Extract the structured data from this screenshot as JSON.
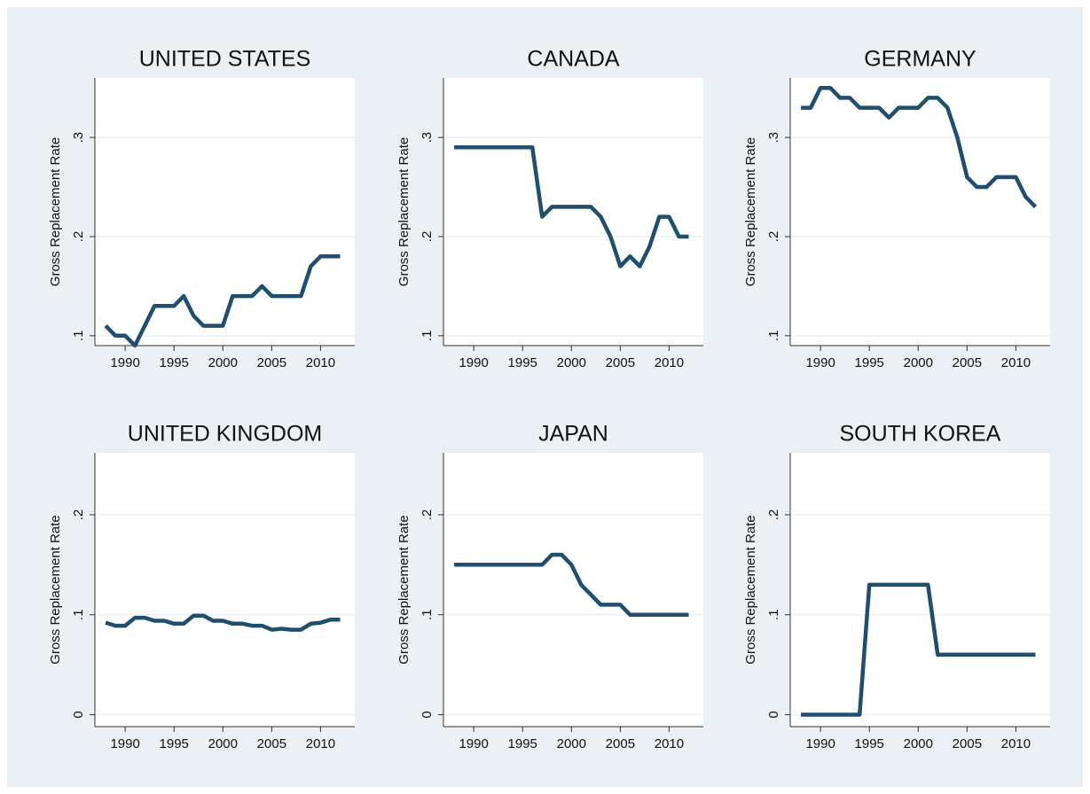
{
  "chart_data": [
    {
      "type": "line",
      "title": "UNITED STATES",
      "ylabel": "Gross Replacement Rate",
      "color": "#1f4e6e",
      "x": [
        1988,
        1989,
        1990,
        1991,
        1992,
        1993,
        1994,
        1995,
        1996,
        1997,
        1998,
        1999,
        2000,
        2001,
        2002,
        2003,
        2004,
        2005,
        2006,
        2007,
        2008,
        2009,
        2010,
        2011,
        2012
      ],
      "values": [
        0.11,
        0.1,
        0.1,
        0.09,
        0.11,
        0.13,
        0.13,
        0.13,
        0.14,
        0.12,
        0.11,
        0.11,
        0.11,
        0.14,
        0.14,
        0.14,
        0.15,
        0.14,
        0.14,
        0.14,
        0.14,
        0.17,
        0.18,
        0.18,
        0.18
      ],
      "xlim": [
        1986.9,
        2013.5
      ],
      "xticks": [
        1990,
        1995,
        2000,
        2005,
        2010
      ],
      "ylim": [
        0.09,
        0.36
      ],
      "yticks": [
        {
          "value": 0.1,
          "label": ".1"
        },
        {
          "value": 0.2,
          "label": ".2"
        },
        {
          "value": 0.3,
          "label": ".3"
        }
      ],
      "grid": true
    },
    {
      "type": "line",
      "title": "CANADA",
      "ylabel": "Gross Replacement Rate",
      "color": "#1f4e6e",
      "x": [
        1988,
        1989,
        1990,
        1991,
        1992,
        1993,
        1994,
        1995,
        1996,
        1997,
        1998,
        1999,
        2000,
        2001,
        2002,
        2003,
        2004,
        2005,
        2006,
        2007,
        2008,
        2009,
        2010,
        2011,
        2012
      ],
      "values": [
        0.29,
        0.29,
        0.29,
        0.29,
        0.29,
        0.29,
        0.29,
        0.29,
        0.29,
        0.22,
        0.23,
        0.23,
        0.23,
        0.23,
        0.23,
        0.22,
        0.2,
        0.17,
        0.18,
        0.17,
        0.19,
        0.22,
        0.22,
        0.2,
        0.2
      ],
      "xlim": [
        1986.9,
        2013.5
      ],
      "xticks": [
        1990,
        1995,
        2000,
        2005,
        2010
      ],
      "ylim": [
        0.09,
        0.36
      ],
      "yticks": [
        {
          "value": 0.1,
          "label": ".1"
        },
        {
          "value": 0.2,
          "label": ".2"
        },
        {
          "value": 0.3,
          "label": ".3"
        }
      ],
      "grid": true
    },
    {
      "type": "line",
      "title": "GERMANY",
      "ylabel": "Gross Replacement Rate",
      "color": "#1f4e6e",
      "x": [
        1988,
        1989,
        1990,
        1991,
        1992,
        1993,
        1994,
        1995,
        1996,
        1997,
        1998,
        1999,
        2000,
        2001,
        2002,
        2003,
        2004,
        2005,
        2006,
        2007,
        2008,
        2009,
        2010,
        2011,
        2012
      ],
      "values": [
        0.33,
        0.33,
        0.35,
        0.35,
        0.34,
        0.34,
        0.33,
        0.33,
        0.33,
        0.32,
        0.33,
        0.33,
        0.33,
        0.34,
        0.34,
        0.33,
        0.3,
        0.26,
        0.25,
        0.25,
        0.26,
        0.26,
        0.26,
        0.24,
        0.23
      ],
      "xlim": [
        1986.9,
        2013.5
      ],
      "xticks": [
        1990,
        1995,
        2000,
        2005,
        2010
      ],
      "ylim": [
        0.09,
        0.36
      ],
      "yticks": [
        {
          "value": 0.1,
          "label": ".1"
        },
        {
          "value": 0.2,
          "label": ".2"
        },
        {
          "value": 0.3,
          "label": ".3"
        }
      ],
      "grid": true
    },
    {
      "type": "line",
      "title": "UNITED KINGDOM",
      "ylabel": "Gross Replacement Rate",
      "color": "#1f4e6e",
      "x": [
        1988,
        1989,
        1990,
        1991,
        1992,
        1993,
        1994,
        1995,
        1996,
        1997,
        1998,
        1999,
        2000,
        2001,
        2002,
        2003,
        2004,
        2005,
        2006,
        2007,
        2008,
        2009,
        2010,
        2011,
        2012
      ],
      "values": [
        0.092,
        0.089,
        0.089,
        0.097,
        0.097,
        0.094,
        0.094,
        0.091,
        0.091,
        0.099,
        0.099,
        0.094,
        0.094,
        0.091,
        0.091,
        0.089,
        0.089,
        0.085,
        0.086,
        0.085,
        0.085,
        0.091,
        0.092,
        0.095,
        0.095
      ],
      "xlim": [
        1986.9,
        2013.5
      ],
      "xticks": [
        1990,
        1995,
        2000,
        2005,
        2010
      ],
      "ylim": [
        -0.012,
        0.262
      ],
      "yticks": [
        0,
        {
          "value": 0.1,
          "label": ".1"
        },
        {
          "value": 0.2,
          "label": ".2"
        }
      ],
      "grid": true
    },
    {
      "type": "line",
      "title": "JAPAN",
      "ylabel": "Gross Replacement Rate",
      "color": "#1f4e6e",
      "x": [
        1988,
        1989,
        1990,
        1991,
        1992,
        1993,
        1994,
        1995,
        1996,
        1997,
        1998,
        1999,
        2000,
        2001,
        2002,
        2003,
        2004,
        2005,
        2006,
        2007,
        2008,
        2009,
        2010,
        2011,
        2012
      ],
      "values": [
        0.15,
        0.15,
        0.15,
        0.15,
        0.15,
        0.15,
        0.15,
        0.15,
        0.15,
        0.15,
        0.16,
        0.16,
        0.15,
        0.13,
        0.12,
        0.11,
        0.11,
        0.11,
        0.1,
        0.1,
        0.1,
        0.1,
        0.1,
        0.1,
        0.1
      ],
      "xlim": [
        1986.9,
        2013.5
      ],
      "xticks": [
        1990,
        1995,
        2000,
        2005,
        2010
      ],
      "ylim": [
        -0.012,
        0.262
      ],
      "yticks": [
        0,
        {
          "value": 0.1,
          "label": ".1"
        },
        {
          "value": 0.2,
          "label": ".2"
        }
      ],
      "grid": true
    },
    {
      "type": "line",
      "title": "SOUTH KOREA",
      "ylabel": "Gross Replacement Rate",
      "color": "#1f4e6e",
      "x": [
        1988,
        1989,
        1990,
        1991,
        1992,
        1993,
        1994,
        1995,
        1996,
        1997,
        1998,
        1999,
        2000,
        2001,
        2002,
        2003,
        2004,
        2005,
        2006,
        2007,
        2008,
        2009,
        2010,
        2011,
        2012
      ],
      "values": [
        0,
        0,
        0,
        0,
        0,
        0,
        0,
        0.13,
        0.13,
        0.13,
        0.13,
        0.13,
        0.13,
        0.13,
        0.06,
        0.06,
        0.06,
        0.06,
        0.06,
        0.06,
        0.06,
        0.06,
        0.06,
        0.06,
        0.06
      ],
      "xlim": [
        1986.9,
        2013.5
      ],
      "xticks": [
        1990,
        1995,
        2000,
        2005,
        2010
      ],
      "ylim": [
        -0.012,
        0.262
      ],
      "yticks": [
        0,
        {
          "value": 0.1,
          "label": ".1"
        },
        {
          "value": 0.2,
          "label": ".2"
        }
      ],
      "grid": true
    }
  ]
}
